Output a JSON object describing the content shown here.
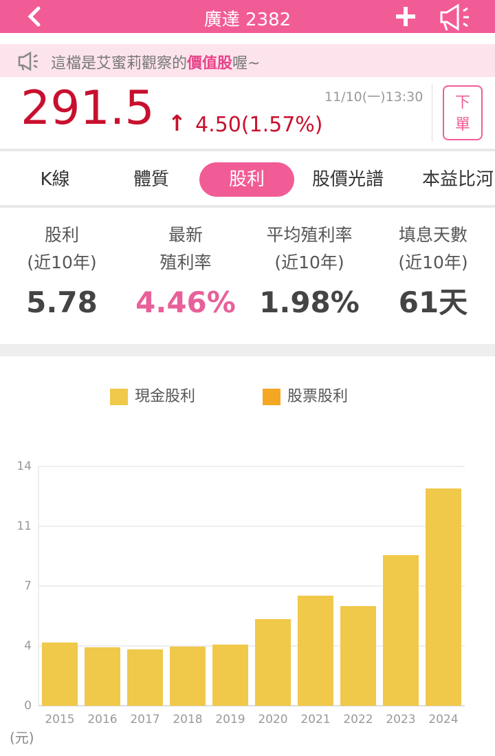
{
  "header": {
    "title": "廣達 2382"
  },
  "banner": {
    "prefix": "這檔是艾蜜莉觀察的",
    "highlight": "價值股",
    "suffix": "喔~"
  },
  "quote": {
    "price": "291.5",
    "change": "4.50(1.57%)",
    "time": "11/10(一)13:30",
    "order_button": [
      "下",
      "單"
    ]
  },
  "tabs": [
    "K線",
    "體質",
    "股利",
    "股價光譜",
    "本益比河"
  ],
  "active_tab": 2,
  "stats": [
    {
      "label": [
        "股利",
        "(近10年)"
      ],
      "value": "5.78"
    },
    {
      "label": [
        "最新",
        "殖利率"
      ],
      "value": "4.46%"
    },
    {
      "label": [
        "平均殖利率",
        "(近10年)"
      ],
      "value": "1.98%"
    },
    {
      "label": [
        "填息天數",
        "(近10年)"
      ],
      "value": "61天"
    }
  ],
  "chart_data": {
    "type": "bar",
    "stacked": true,
    "y_label": "(元)",
    "categories": [
      "2015",
      "2016",
      "2017",
      "2018",
      "2019",
      "2020",
      "2021",
      "2022",
      "2023",
      "2024"
    ],
    "series": [
      {
        "name": "現金股利",
        "color": "#f0c84a",
        "values": [
          3.7,
          3.42,
          3.3,
          3.46,
          3.58,
          5.07,
          6.44,
          5.83,
          8.81,
          12.71
        ]
      },
      {
        "name": "股票股利",
        "color": "#f5a623",
        "values": [
          0,
          0,
          0,
          0,
          0,
          0,
          0,
          0,
          0,
          0
        ]
      }
    ],
    "ylim": [
      0,
      14
    ],
    "yticks": [
      0,
      {
        "value": 3.5,
        "label": "4"
      },
      7,
      {
        "value": 10.5,
        "label": "11"
      },
      14
    ],
    "grid": true
  }
}
